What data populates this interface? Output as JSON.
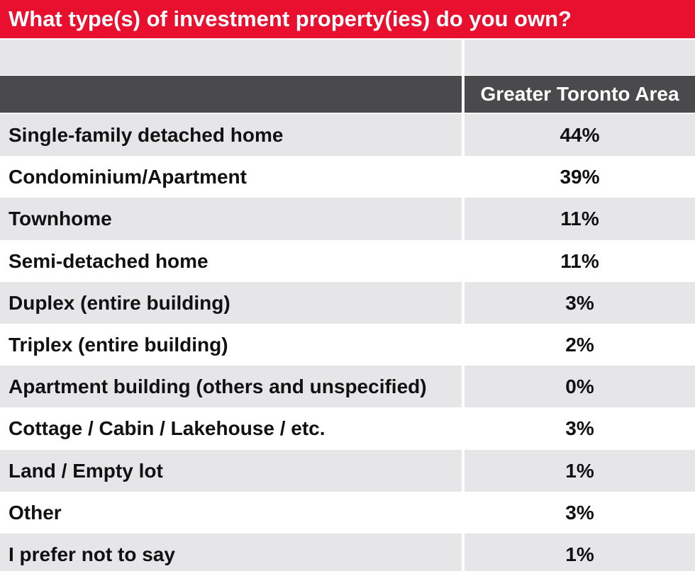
{
  "title": "What type(s) of investment property(ies) do you own?",
  "colors": {
    "title_bg": "#e8102e",
    "header_bg": "#4a4a4c",
    "row_shaded": "#e6e6e8",
    "row_plain": "#ffffff"
  },
  "chart_data": {
    "type": "table",
    "title": "What type(s) of investment property(ies) do you own?",
    "columns": [
      "",
      "Greater Toronto Area"
    ],
    "rows": [
      {
        "label": "Single-family detached home",
        "value": "44%"
      },
      {
        "label": "Condominium/Apartment",
        "value": "39%"
      },
      {
        "label": "Townhome",
        "value": "11%"
      },
      {
        "label": "Semi-detached home",
        "value": "11%"
      },
      {
        "label": "Duplex (entire building)",
        "value": "3%"
      },
      {
        "label": "Triplex (entire building)",
        "value": "2%"
      },
      {
        "label": "Apartment building (others and unspecified)",
        "value": "0%"
      },
      {
        "label": "Cottage / Cabin / Lakehouse / etc.",
        "value": "3%"
      },
      {
        "label": "Land / Empty lot",
        "value": "1%"
      },
      {
        "label": "Other",
        "value": "3%"
      },
      {
        "label": "I prefer not to say",
        "value": "1%"
      }
    ]
  }
}
